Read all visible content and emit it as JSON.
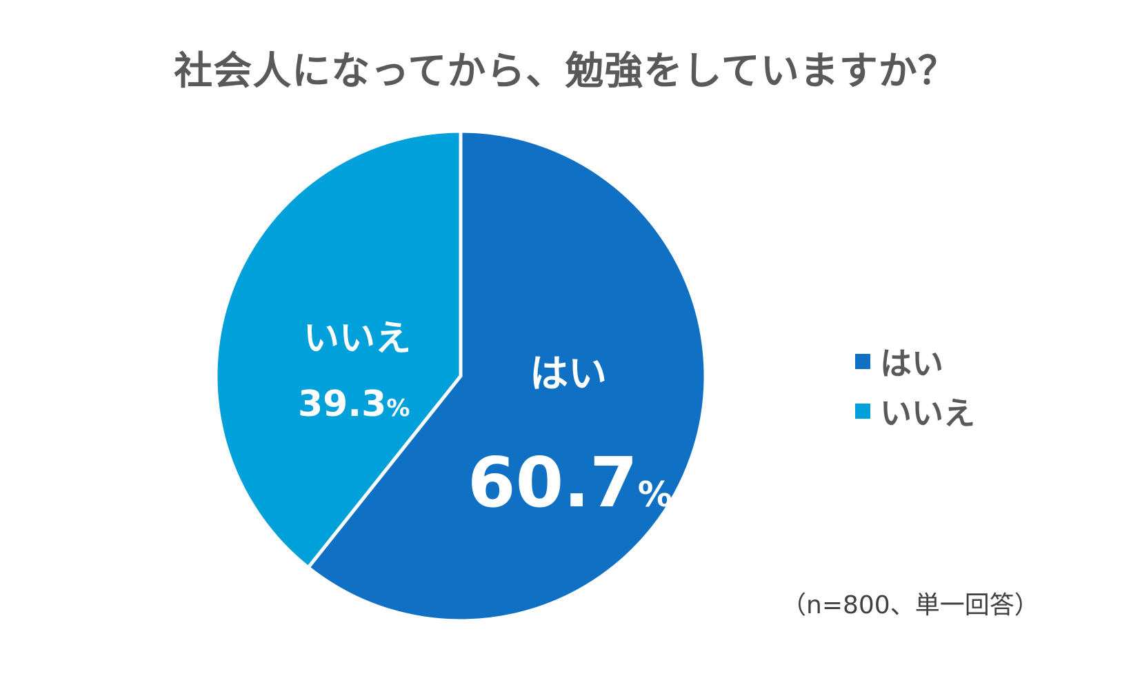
{
  "chart_data": {
    "type": "pie",
    "title": "社会人になってから、勉強をしていますか？",
    "categories": [
      "はい",
      "いいえ"
    ],
    "values": [
      60.7,
      39.3
    ],
    "unit": "%",
    "value_labels": [
      "60.7",
      "39.3"
    ],
    "colors": [
      "#1070C4",
      "#00A0DA"
    ],
    "legend_placement": "right",
    "start_angle": "12 o'clock",
    "direction": "clockwise"
  },
  "footnote": "（n=800、単一回答）"
}
